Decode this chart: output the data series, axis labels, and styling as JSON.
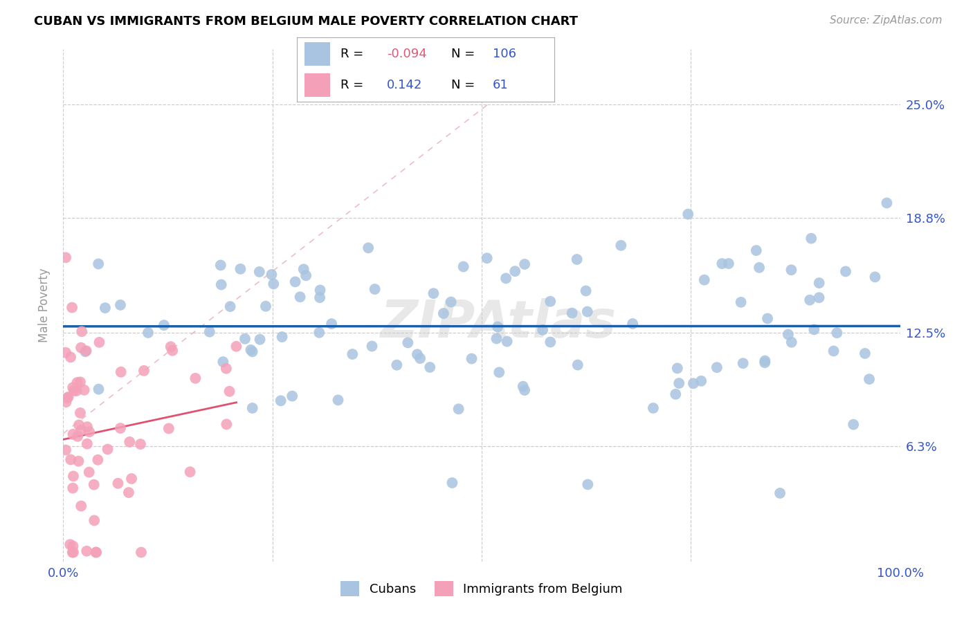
{
  "title": "CUBAN VS IMMIGRANTS FROM BELGIUM MALE POVERTY CORRELATION CHART",
  "source": "Source: ZipAtlas.com",
  "ylabel": "Male Poverty",
  "ytick_labels": [
    "6.3%",
    "12.5%",
    "18.8%",
    "25.0%"
  ],
  "ytick_values": [
    6.3,
    12.5,
    18.8,
    25.0
  ],
  "xlim": [
    0,
    100
  ],
  "ylim": [
    0,
    28
  ],
  "legend_r_cubans": "-0.094",
  "legend_n_cubans": "106",
  "legend_r_belgium": "0.142",
  "legend_n_belgium": "61",
  "watermark": "ZIPAtlas",
  "color_cubans": "#a8c4e0",
  "color_belgium": "#f4a0b8",
  "color_line_cubans": "#1a5fa8",
  "color_line_belgium": "#e05070",
  "color_r_neg": "#e05878",
  "color_blue_text": "#3355cc",
  "color_axis_ticks": "#3355cc",
  "background": "#ffffff",
  "title_fontsize": 13,
  "source_fontsize": 11,
  "tick_fontsize": 13,
  "watermark_text": "ZIPAtlas"
}
